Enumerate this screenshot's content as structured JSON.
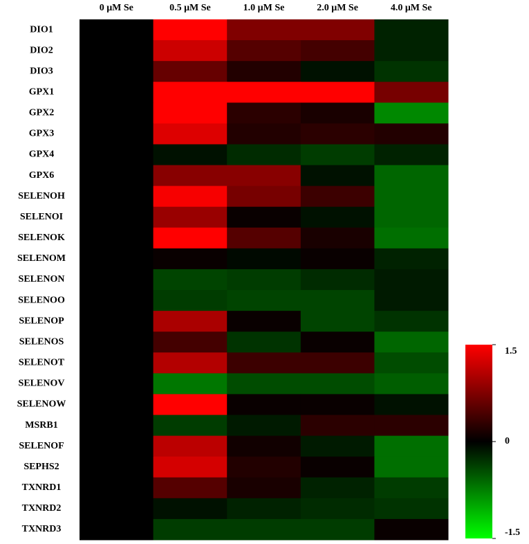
{
  "chart_data": {
    "type": "heatmap",
    "x_categories": [
      "0 μM Se",
      "0.5 μM Se",
      "1.0 μM Se",
      "2.0 μM Se",
      "4.0 μM Se"
    ],
    "y_categories": [
      "DIO1",
      "DIO2",
      "DIO3",
      "GPX1",
      "GPX2",
      "GPX3",
      "GPX4",
      "GPX6",
      "SELENOH",
      "SELENOI",
      "SELENOK",
      "SELENOM",
      "SELENON",
      "SELENOO",
      "SELENOP",
      "SELENOS",
      "SELENOT",
      "SELENOV",
      "SELENOW",
      "MSRB1",
      "SELENOF",
      "SEPHS2",
      "TXNRD1",
      "TXNRD2",
      "TXNRD3"
    ],
    "values": [
      [
        0,
        1.5,
        0.75,
        0.75,
        -0.2
      ],
      [
        0,
        1.2,
        0.5,
        0.4,
        -0.2
      ],
      [
        0,
        0.6,
        0.2,
        -0.1,
        -0.3
      ],
      [
        0,
        1.5,
        1.5,
        1.5,
        0.7
      ],
      [
        0,
        1.5,
        0.25,
        0.15,
        -0.8
      ],
      [
        0,
        1.3,
        0.2,
        0.25,
        0.2
      ],
      [
        0,
        -0.1,
        -0.25,
        -0.35,
        -0.2
      ],
      [
        0,
        0.8,
        0.8,
        -0.1,
        -0.6
      ],
      [
        0,
        1.45,
        0.7,
        0.35,
        -0.6
      ],
      [
        0,
        0.9,
        0.05,
        -0.1,
        -0.6
      ],
      [
        0,
        1.5,
        0.5,
        0.15,
        -0.65
      ],
      [
        0,
        0.05,
        -0.05,
        0.05,
        -0.2
      ],
      [
        0,
        -0.4,
        -0.35,
        -0.25,
        -0.15
      ],
      [
        0,
        -0.35,
        -0.4,
        -0.4,
        -0.15
      ],
      [
        0,
        1.0,
        0.05,
        -0.4,
        -0.3
      ],
      [
        0,
        0.4,
        -0.3,
        0.05,
        -0.6
      ],
      [
        0,
        1.05,
        0.35,
        0.35,
        -0.45
      ],
      [
        0,
        -0.7,
        -0.45,
        -0.45,
        -0.55
      ],
      [
        0,
        1.5,
        0.05,
        0.05,
        -0.1
      ],
      [
        0,
        -0.35,
        -0.15,
        0.25,
        0.25
      ],
      [
        0,
        1.1,
        0.1,
        -0.15,
        -0.65
      ],
      [
        0,
        1.25,
        0.2,
        0.05,
        -0.65
      ],
      [
        0,
        0.5,
        0.15,
        -0.2,
        -0.35
      ],
      [
        0,
        -0.1,
        -0.2,
        -0.25,
        -0.3
      ],
      [
        0,
        -0.35,
        -0.35,
        -0.35,
        0.05
      ]
    ],
    "colormap": [
      "#00ff00",
      "#000000",
      "#ff0000"
    ],
    "clim": [
      -1.5,
      1.5
    ],
    "cticks": [
      1.5,
      0,
      -1.5
    ]
  }
}
